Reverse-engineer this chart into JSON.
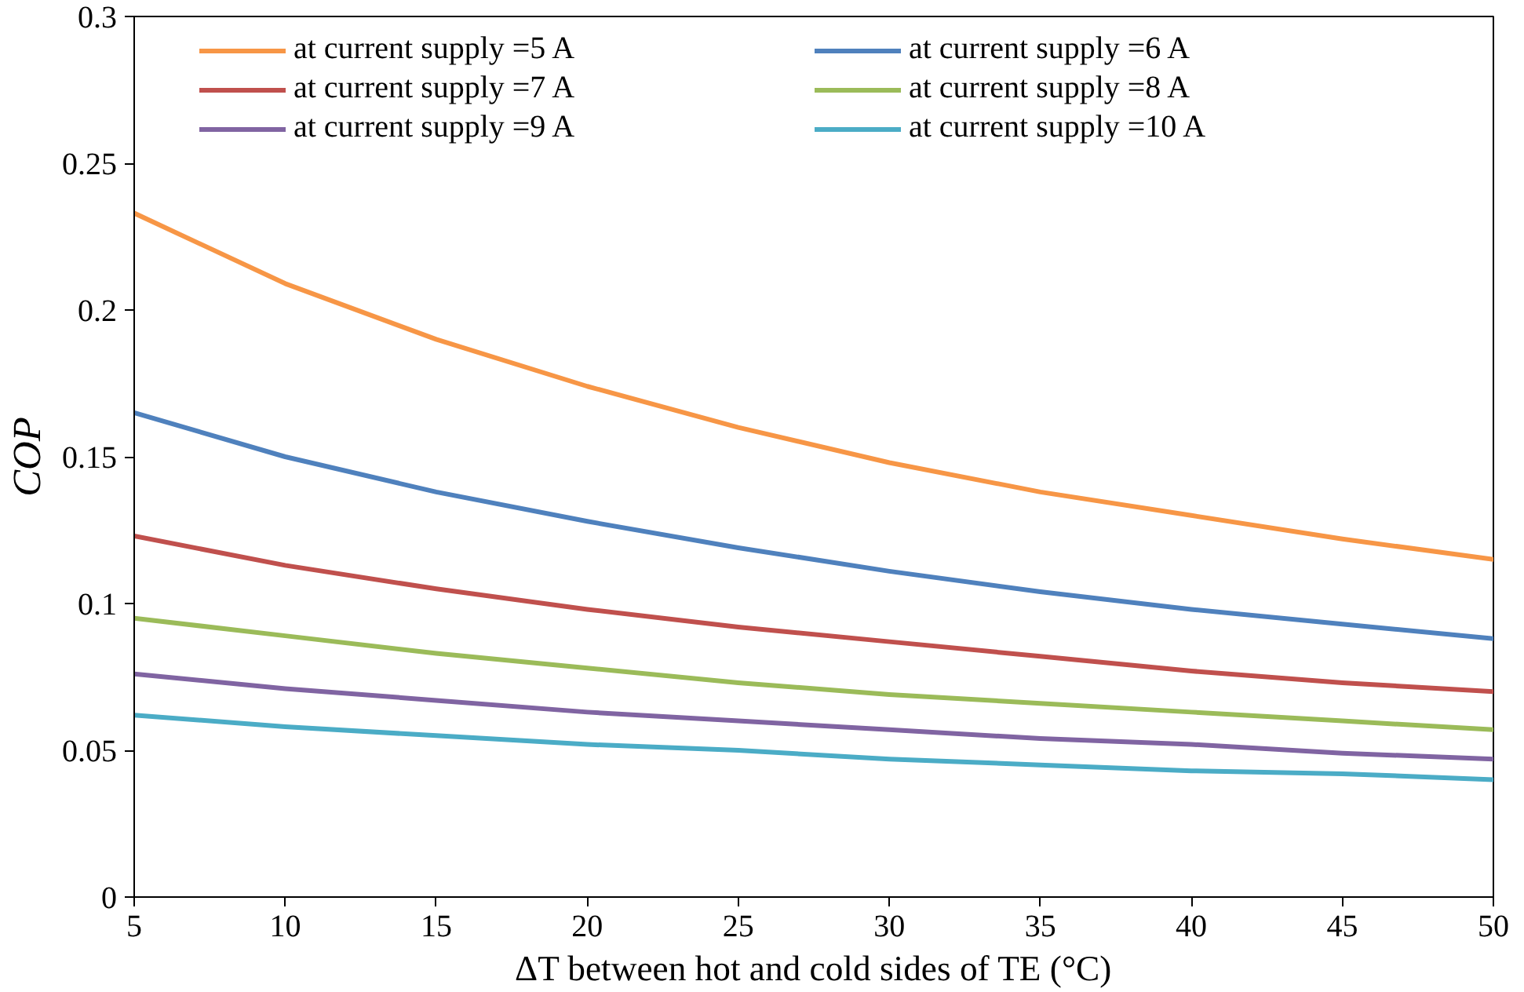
{
  "chart_data": {
    "type": "line",
    "xlabel": "ΔT between hot and cold sides of TE (°C)",
    "ylabel": "COP",
    "x": [
      5,
      10,
      15,
      20,
      25,
      30,
      35,
      40,
      45,
      50
    ],
    "xlim": [
      5,
      50
    ],
    "xticks": [
      5,
      10,
      15,
      20,
      25,
      30,
      35,
      40,
      45,
      50
    ],
    "ylim": [
      0,
      0.3
    ],
    "yticks": [
      0,
      0.05,
      0.1,
      0.15,
      0.2,
      0.25,
      0.3
    ],
    "grid": false,
    "legend": "top",
    "marker": "none",
    "line_style": "solid",
    "series": [
      {
        "name": "at current supply =5 A",
        "color": "#f79646",
        "values": [
          0.233,
          0.209,
          0.19,
          0.174,
          0.16,
          0.148,
          0.138,
          0.13,
          0.122,
          0.115
        ]
      },
      {
        "name": "at current supply =6 A",
        "color": "#4f81bd",
        "values": [
          0.165,
          0.15,
          0.138,
          0.128,
          0.119,
          0.111,
          0.104,
          0.098,
          0.093,
          0.088
        ]
      },
      {
        "name": "at current supply =7 A",
        "color": "#c0504d",
        "values": [
          0.123,
          0.113,
          0.105,
          0.098,
          0.092,
          0.087,
          0.082,
          0.077,
          0.073,
          0.07
        ]
      },
      {
        "name": "at current supply =8 A",
        "color": "#9bbb59",
        "values": [
          0.095,
          0.089,
          0.083,
          0.078,
          0.073,
          0.069,
          0.066,
          0.063,
          0.06,
          0.057
        ]
      },
      {
        "name": "at current supply =9 A",
        "color": "#8064a2",
        "values": [
          0.076,
          0.071,
          0.067,
          0.063,
          0.06,
          0.057,
          0.054,
          0.052,
          0.049,
          0.047
        ]
      },
      {
        "name": "at current supply =10 A",
        "color": "#4bacc6",
        "values": [
          0.062,
          0.058,
          0.055,
          0.052,
          0.05,
          0.047,
          0.045,
          0.043,
          0.042,
          0.04
        ]
      }
    ]
  }
}
